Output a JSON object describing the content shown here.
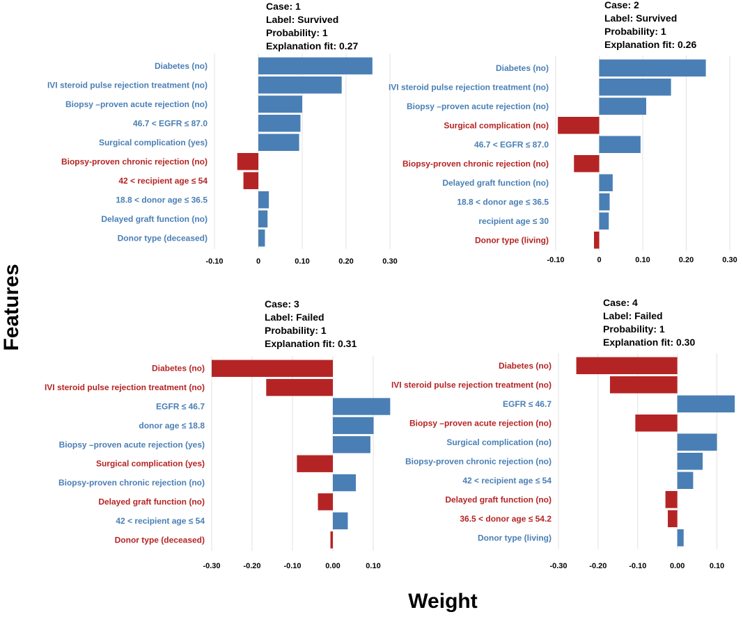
{
  "figure": {
    "y_axis_title": "Features",
    "x_axis_title": "Weight"
  },
  "colors": {
    "positive": "#4a7fb5",
    "negative": "#b52424"
  },
  "chart_data": [
    {
      "type": "bar",
      "orientation": "horizontal",
      "header": [
        "Case: 1",
        "Label: Survived",
        "Probability:  1",
        "Explanation  fit:  0.27"
      ],
      "xlim": [
        -0.1,
        0.3
      ],
      "ticks": [
        -0.1,
        0,
        0.1,
        0.2,
        0.3
      ],
      "tick_labels": [
        "-0.10",
        "0",
        "0.10",
        "0.20",
        "0.30"
      ],
      "categories": [
        "Diabetes (no)",
        "IVI steroid pulse rejection treatment (no)",
        "Biopsy –proven acute rejection (no)",
        "46.7 <  EGFR ≤ 87.0",
        "Surgical complication (yes)",
        "Biopsy-proven chronic rejection (no)",
        "42 < recipient age ≤ 54",
        "18.8 < donor age ≤ 36.5",
        "Delayed graft function (no)",
        "Donor type (deceased)"
      ],
      "values": [
        0.26,
        0.19,
        0.1,
        0.096,
        0.093,
        -0.048,
        -0.034,
        0.024,
        0.021,
        0.015
      ]
    },
    {
      "type": "bar",
      "orientation": "horizontal",
      "header": [
        "Case: 2",
        "Label: Survived",
        "Probability:  1",
        "Explanation  fit:  0.26"
      ],
      "xlim": [
        -0.1,
        0.3
      ],
      "ticks": [
        -0.1,
        0,
        0.1,
        0.2,
        0.3
      ],
      "tick_labels": [
        "-0.10",
        "0",
        "0.10",
        "0.20",
        "0.30"
      ],
      "categories": [
        "Diabetes (no)",
        "IVI steroid pulse rejection treatment (no)",
        "Biopsy –proven acute rejection (no)",
        "Surgical complication (no)",
        "46.7 <  EGFR ≤ 87.0",
        "Biopsy-proven chronic rejection (no)",
        "Delayed graft function (no)",
        "18.8 < donor age ≤ 36.5",
        "recipient age ≤ 30",
        "Donor type (living)"
      ],
      "values": [
        0.245,
        0.165,
        0.108,
        -0.095,
        0.095,
        -0.058,
        0.031,
        0.024,
        0.022,
        -0.012
      ]
    },
    {
      "type": "bar",
      "orientation": "horizontal",
      "header": [
        "Case: 3",
        "Label: Failed",
        "Probability:  1",
        "Explanation  fit:  0.31"
      ],
      "xlim": [
        -0.3,
        0.15
      ],
      "ticks": [
        -0.3,
        -0.2,
        -0.1,
        0.0,
        0.1
      ],
      "tick_labels": [
        "-0.30",
        "-0.20",
        "-0.10",
        "0.00",
        "0.10"
      ],
      "categories": [
        "Diabetes (no)",
        "IVI steroid pulse rejection treatment (no)",
        "EGFR ≤ 46.7",
        "donor age ≤ 18.8",
        "Biopsy –proven acute rejection (yes)",
        "Surgical complication (yes)",
        "Biopsy-proven chronic rejection (no)",
        "Delayed graft function (no)",
        "42 < recipient age ≤ 54",
        "Donor type (deceased)"
      ],
      "values": [
        -0.3,
        -0.165,
        0.142,
        0.101,
        0.093,
        -0.089,
        0.057,
        -0.037,
        0.037,
        -0.006
      ]
    },
    {
      "type": "bar",
      "orientation": "horizontal",
      "header": [
        "Case: 4",
        "Label: Failed",
        "Probability:  1",
        "Explanation  fit:  0.30"
      ],
      "xlim": [
        -0.3,
        0.15
      ],
      "ticks": [
        -0.3,
        -0.2,
        -0.1,
        0.0,
        0.1
      ],
      "tick_labels": [
        "-0.30",
        "-0.20",
        "-0.10",
        "0.00",
        "0.10"
      ],
      "categories": [
        "Diabetes (no)",
        "IVI steroid pulse rejection treatment (no)",
        "EGFR ≤ 46.7",
        "Biopsy –proven acute rejection (no)",
        "Surgical complication (no)",
        "Biopsy-proven chronic rejection (no)",
        "42 < recipient age ≤ 54",
        "Delayed graft function (no)",
        "36.5 < donor age ≤ 54.2",
        "Donor type (living)"
      ],
      "values": [
        -0.255,
        -0.17,
        0.145,
        -0.106,
        0.1,
        0.064,
        0.04,
        -0.03,
        -0.024,
        0.016
      ]
    }
  ]
}
